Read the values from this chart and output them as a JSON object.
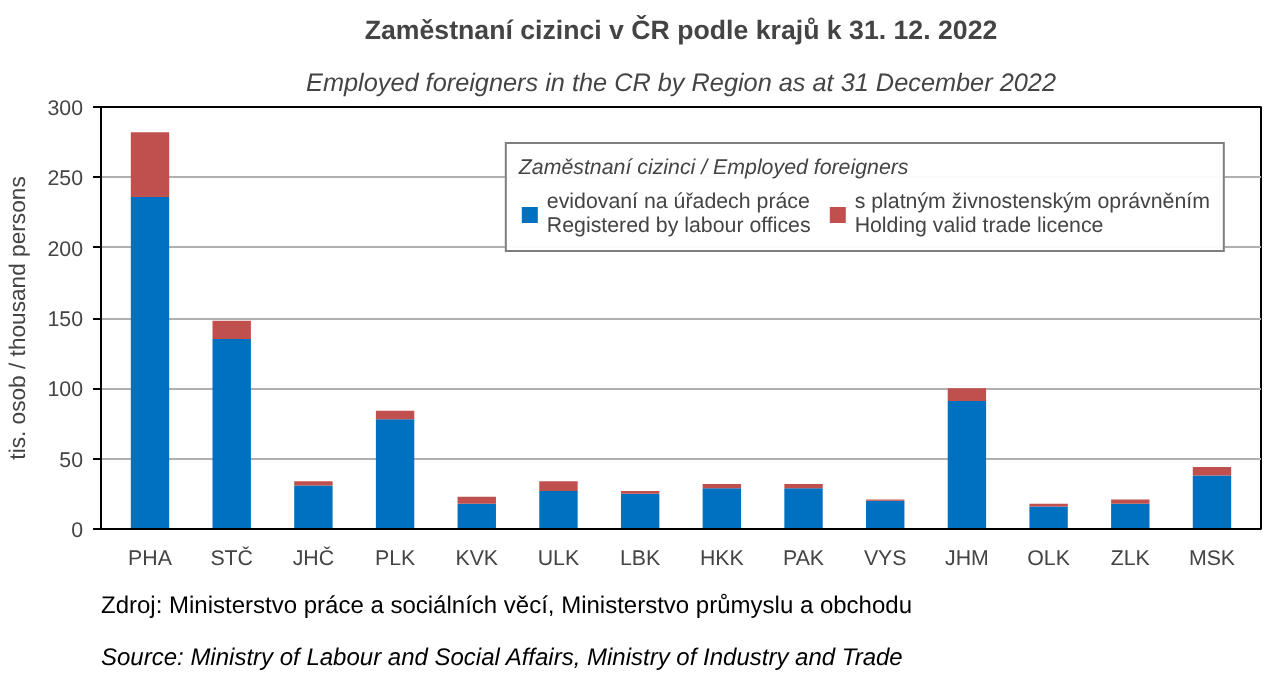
{
  "chart_data": {
    "type": "bar",
    "title": "Zaměstnaní cizinci v ČR podle krajů k 31. 12. 2022",
    "subtitle": "Employed foreigners in the CR by Region as at 31 December 2022",
    "ylabel": "tis. osob / thousand persons",
    "legend_title": "Zaměstnaní cizinci / Employed foreigners",
    "categories": [
      "PHA",
      "STČ",
      "JHČ",
      "PLK",
      "KVK",
      "ULK",
      "LBK",
      "HKK",
      "PAK",
      "VYS",
      "JHM",
      "OLK",
      "ZLK",
      "MSK"
    ],
    "stacked": true,
    "series": [
      {
        "name": "evidovaní na úřadech práce\nRegistered by labour offices",
        "color": "#0070c0",
        "values": [
          236,
          135,
          31,
          78,
          18,
          27,
          25,
          29,
          29,
          20,
          91,
          16,
          18,
          38
        ]
      },
      {
        "name": "s platným živnostenským oprávněním\nHolding valid trade licence",
        "color": "#c0504d",
        "values": [
          46,
          13,
          3,
          6,
          5,
          7,
          2,
          3,
          3,
          1,
          9,
          2,
          3,
          6
        ]
      }
    ],
    "ylim": [
      0,
      300
    ],
    "yticks": [
      0,
      50,
      100,
      150,
      200,
      250,
      300
    ],
    "grid": "y",
    "legend": "top right",
    "annotations": [
      "Zdroj: Ministerstvo práce a sociálních věcí, Ministerstvo průmyslu a obchodu",
      "Source: Ministry of Labour and Social Affairs, Ministry of Industry and Trade"
    ]
  }
}
